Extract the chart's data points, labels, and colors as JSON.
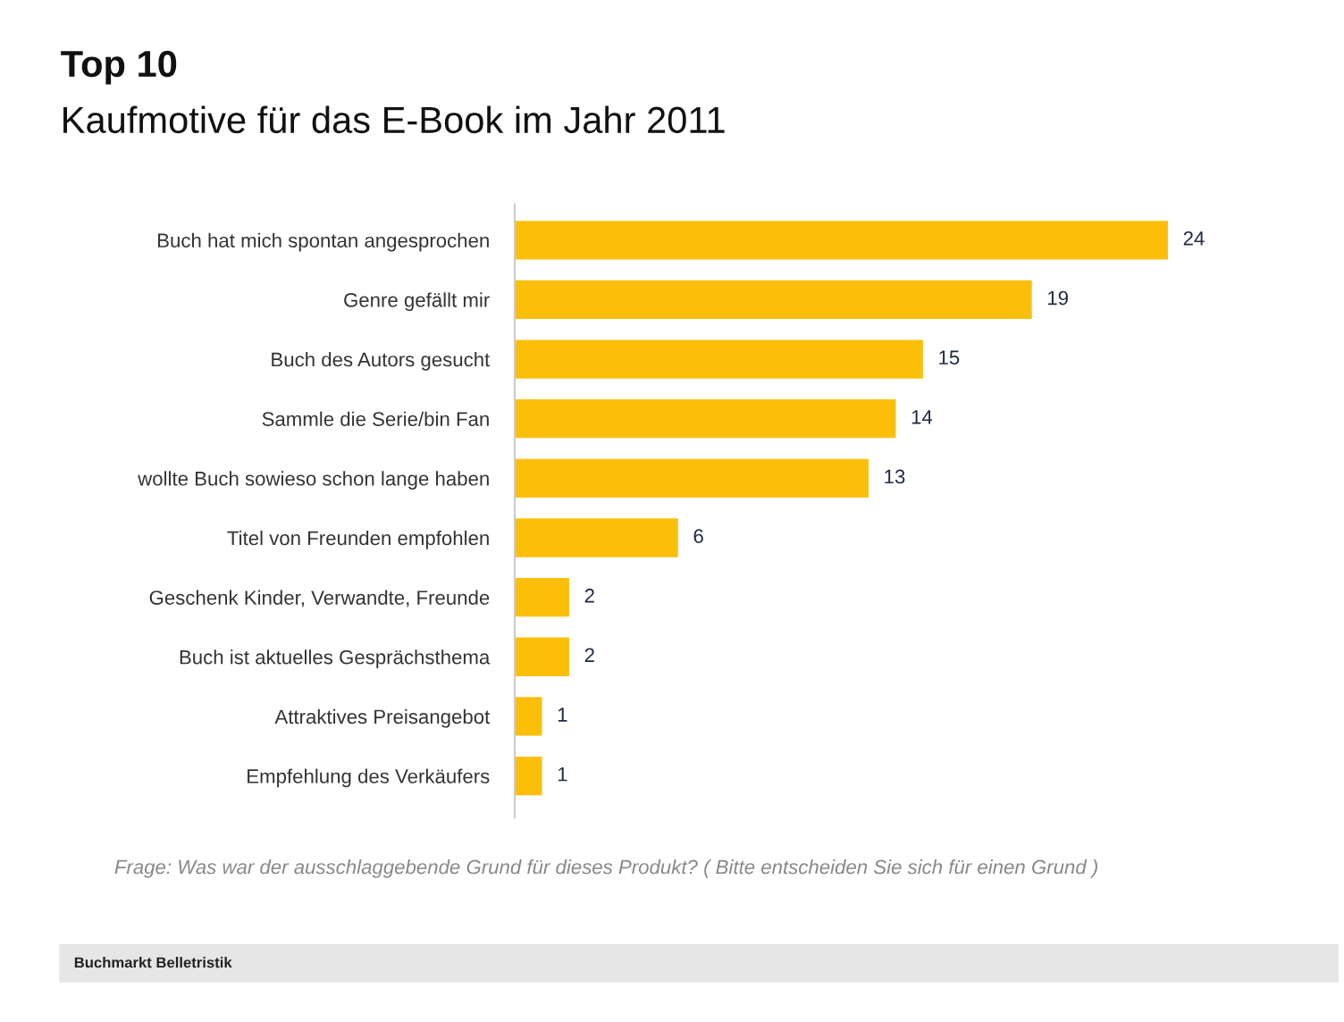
{
  "chart_data": {
    "type": "bar",
    "orientation": "horizontal",
    "title": "Top 10",
    "subtitle": "Kaufmotive für das E-Book im Jahr 2011",
    "categories": [
      "Buch hat mich spontan angesprochen",
      "Genre gefällt mir",
      "Buch des Autors gesucht",
      "Sammle die Serie/bin Fan",
      "wollte Buch sowieso schon lange haben",
      "Titel von Freunden empfohlen",
      "Geschenk Kinder, Verwandte, Freunde",
      "Buch ist aktuelles Gesprächsthema",
      "Attraktives Preisangebot",
      "Empfehlung des Verkäufers"
    ],
    "values": [
      24,
      19,
      15,
      14,
      13,
      6,
      2,
      2,
      1,
      1
    ],
    "color": "#fbbf0a",
    "data_labels": true,
    "grid": false,
    "legend": false,
    "annotations": [
      "Frage: Was war der ausschlaggebende Grund für dieses Produkt? ( Bitte entscheiden Sie sich für einen Grund )",
      "Buchmarkt Belletristik"
    ]
  }
}
